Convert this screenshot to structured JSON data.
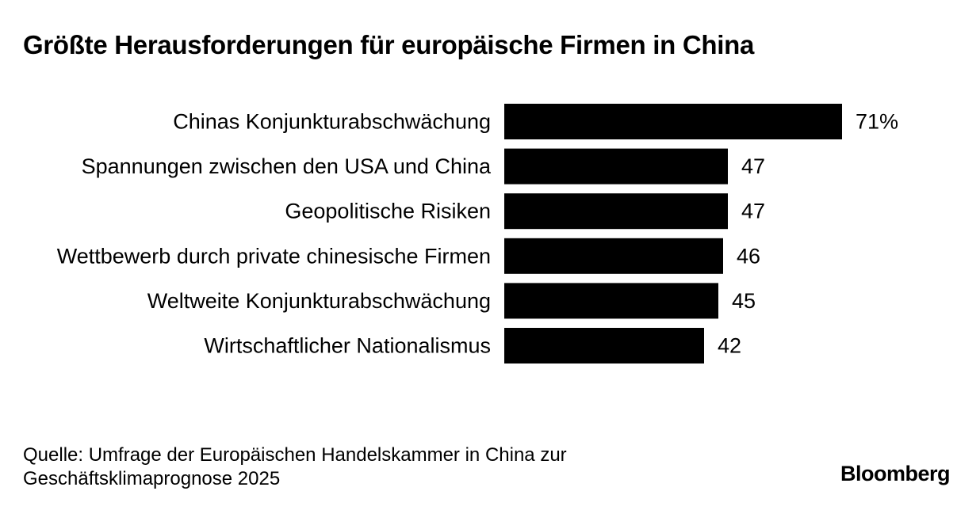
{
  "title": "Größte Herausforderungen für europäische Firmen in China",
  "source": {
    "line1": "Quelle: Umfrage der Europäischen Handelskammer in China zur",
    "line2": "Geschäftsklimaprognose 2025"
  },
  "brand": "Bloomberg",
  "colors": {
    "bar": "#000000",
    "text": "#000000",
    "background": "#ffffff"
  },
  "chart_data": {
    "type": "bar",
    "orientation": "horizontal",
    "categories": [
      "Chinas Konjunkturabschwächung",
      "Spannungen zwischen den USA und China",
      "Geopolitische Risiken",
      "Wettbewerb durch private chinesische Firmen",
      "Weltweite Konjunkturabschwächung",
      "Wirtschaftlicher Nationalismus"
    ],
    "values": [
      71,
      47,
      47,
      46,
      45,
      42
    ],
    "value_labels": [
      "71%",
      "47",
      "47",
      "46",
      "45",
      "42"
    ],
    "unit": "%",
    "xlim": [
      0,
      100
    ],
    "grid": false,
    "legend": "none"
  }
}
